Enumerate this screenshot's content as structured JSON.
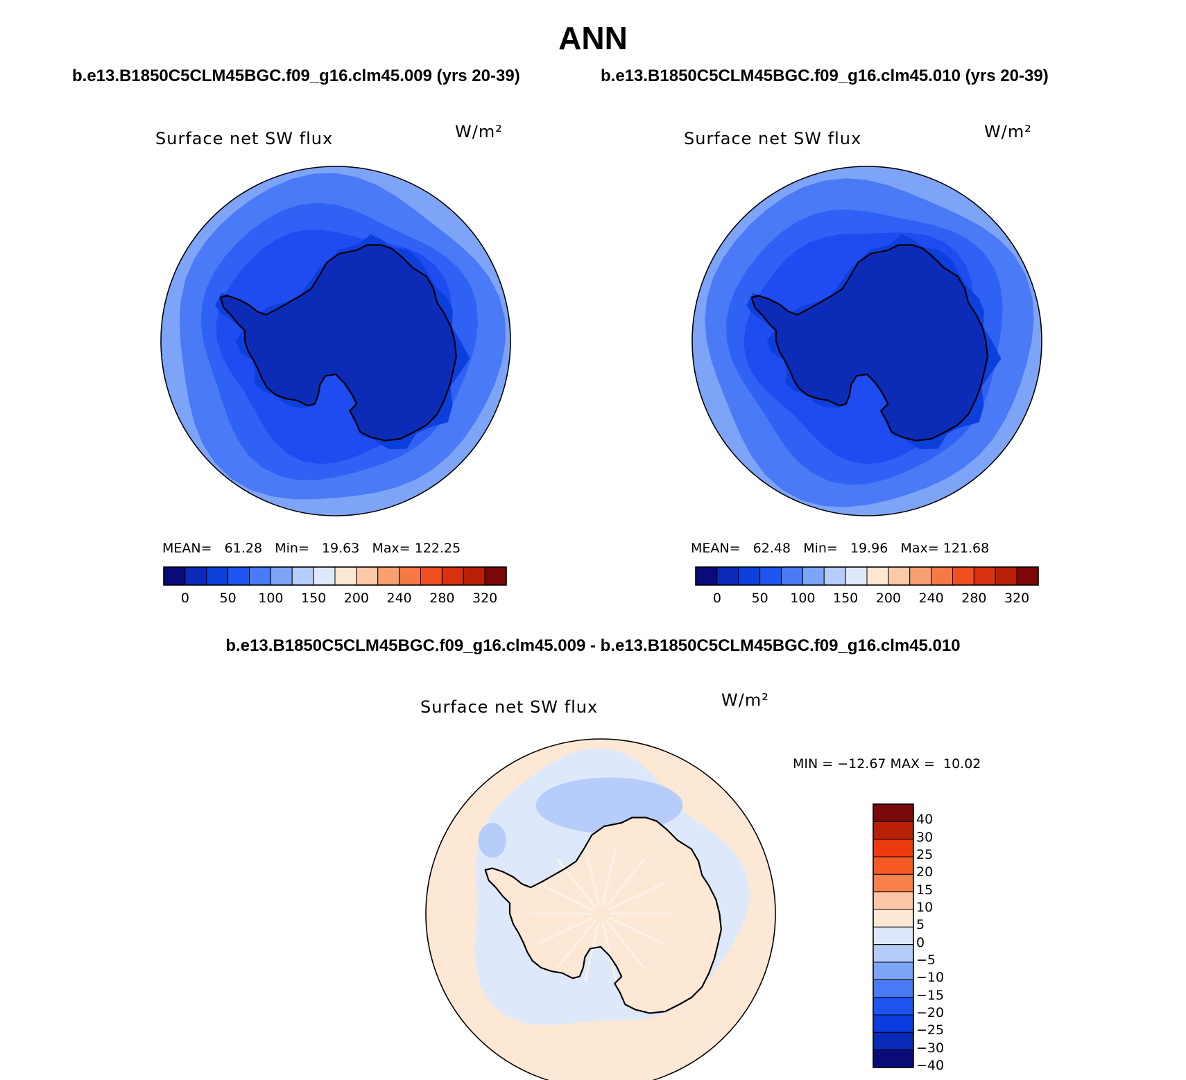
{
  "title": "ANN",
  "runs": {
    "left": "b.e13.B1850C5CLM45BGC.f09_g16.clm45.009 (yrs 20-39)",
    "right": "b.e13.B1850C5CLM45BGC.f09_g16.clm45.010 (yrs 20-39)",
    "diff": "b.e13.B1850C5CLM45BGC.f09_g16.clm45.009 - b.e13.B1850C5CLM45BGC.f09_g16.clm45.010"
  },
  "panels": [
    {
      "variable": "Surface net SW flux",
      "units": "W/m²",
      "stats": {
        "mean_label": "MEAN=",
        "mean": "61.28",
        "min_label": "Min=",
        "min": "19.63",
        "max_label": "Max=",
        "max": "122.25"
      }
    },
    {
      "variable": "Surface net SW flux",
      "units": "W/m²",
      "stats": {
        "mean_label": "MEAN=",
        "mean": "62.48",
        "min_label": "Min=",
        "min": "19.96",
        "max_label": "Max=",
        "max": "121.68"
      }
    },
    {
      "variable": "Surface net SW flux",
      "units": "W/m²",
      "stats_text": "MIN = −12.67 MAX =  10.02"
    }
  ],
  "colorbar_abs": {
    "colors": [
      "#0a0a78",
      "#0b2ab8",
      "#0c3fdc",
      "#1e55f0",
      "#4a7af5",
      "#7ea4f7",
      "#b5cdf8",
      "#dde9fb",
      "#fde6d2",
      "#fbc8a8",
      "#f8a070",
      "#f57845",
      "#ef5020",
      "#d83010",
      "#b82008",
      "#7a0808"
    ],
    "tick_labels": [
      "0",
      "50",
      "100",
      "150",
      "200",
      "240",
      "280",
      "320"
    ]
  },
  "colorbar_diff": {
    "colors": [
      "#7a0808",
      "#b82008",
      "#ee3a10",
      "#f55a25",
      "#f8804a",
      "#fbc6a8",
      "#fde8d6",
      "#dde9fb",
      "#b5cdf8",
      "#7ea4f7",
      "#4a7af5",
      "#1e55f0",
      "#0b3ce0",
      "#0a2ab8",
      "#0a0a78"
    ],
    "tick_labels": [
      "40",
      "30",
      "25",
      "20",
      "15",
      "10",
      "5",
      "0",
      "−5",
      "−10",
      "−15",
      "−20",
      "−25",
      "−30",
      "−40"
    ]
  },
  "map_colors": {
    "land": "#0c2cb8",
    "land_edge": "#0c3fdc",
    "inner_ocean": "#1e4cf0",
    "mid_ocean": "#2f62f4",
    "outer_ocean": "#4a7af5",
    "rim": "#7ea4f7",
    "diff_pos": "#fde8d6",
    "diff_neg": "#dde9fb",
    "diff_neg2": "#b5cdf8",
    "diff_land_streak": "#fbf2ea",
    "coast": "#000000"
  }
}
